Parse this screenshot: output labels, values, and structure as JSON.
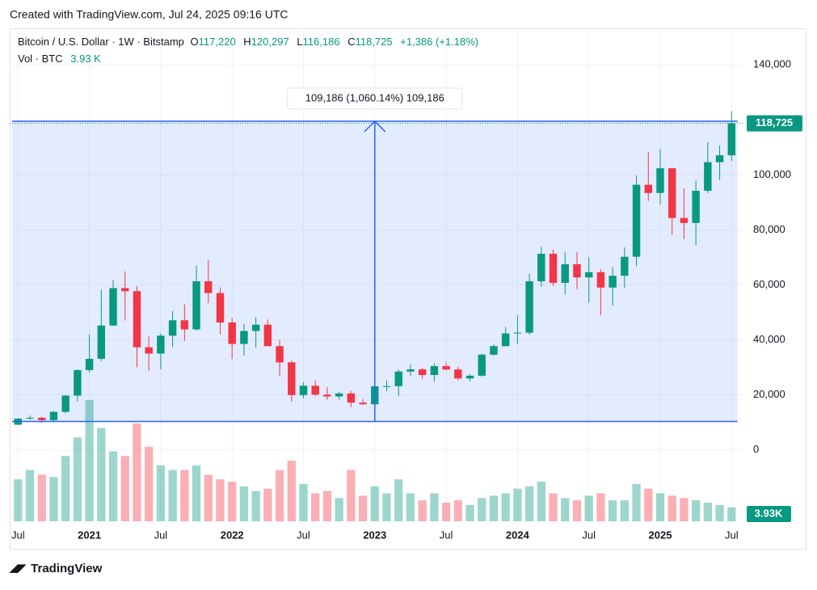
{
  "header": "Created with TradingView.com, Jul 24, 2025 09:16 UTC",
  "footer": "TradingView",
  "chart_data": {
    "type": "candlestick",
    "legend": {
      "symbol": "Bitcoin / U.S. Dollar · 1W · Bitstamp",
      "open_label": "O",
      "open": "117,220",
      "high_label": "H",
      "high": "120,297",
      "low_label": "L",
      "low": "116,186",
      "close_label": "C",
      "close": "118,725",
      "change": "+1,386 (+1.18%)",
      "volume_name": "Vol · BTC",
      "volume": "3.93 K"
    },
    "up_color": "#089981",
    "down_color": "#f23645",
    "ohlc": [
      [
        9140,
        11400,
        8950,
        11350
      ],
      [
        11350,
        12470,
        10950,
        11650
      ],
      [
        11650,
        12050,
        9850,
        10780
      ],
      [
        10780,
        14100,
        10400,
        13800
      ],
      [
        13800,
        19900,
        13200,
        19700
      ],
      [
        19700,
        29300,
        17600,
        29000
      ],
      [
        29000,
        41900,
        28100,
        33100
      ],
      [
        33100,
        58300,
        32300,
        45200
      ],
      [
        45200,
        61800,
        45000,
        58800
      ],
      [
        58800,
        64900,
        47000,
        57700
      ],
      [
        57700,
        59500,
        30000,
        37300
      ],
      [
        37300,
        41300,
        28800,
        35000
      ],
      [
        35000,
        42300,
        29300,
        41500
      ],
      [
        41500,
        50500,
        37400,
        47100
      ],
      [
        47100,
        52900,
        39600,
        43800
      ],
      [
        43800,
        67000,
        43300,
        61300
      ],
      [
        61300,
        69000,
        53300,
        57000
      ],
      [
        57000,
        59100,
        42000,
        46300
      ],
      [
        46300,
        47900,
        33000,
        38500
      ],
      [
        38500,
        45800,
        34300,
        43200
      ],
      [
        43200,
        48200,
        37200,
        45500
      ],
      [
        45500,
        47400,
        37700,
        37700
      ],
      [
        37700,
        40000,
        26700,
        31800
      ],
      [
        31800,
        32400,
        17600,
        19900
      ],
      [
        19900,
        24600,
        18800,
        23300
      ],
      [
        23300,
        25200,
        19600,
        20050
      ],
      [
        20050,
        22800,
        18200,
        19400
      ],
      [
        19400,
        21000,
        18200,
        20500
      ],
      [
        20500,
        21450,
        15500,
        17150
      ],
      [
        17150,
        18400,
        16300,
        16550
      ],
      [
        16550,
        23900,
        16500,
        23100
      ],
      [
        23100,
        25200,
        21400,
        23150
      ],
      [
        23150,
        29200,
        19600,
        28450
      ],
      [
        28450,
        31000,
        26900,
        29250
      ],
      [
        29250,
        29800,
        25800,
        27200
      ],
      [
        27200,
        31400,
        24800,
        30450
      ],
      [
        30450,
        31800,
        28900,
        29200
      ],
      [
        29200,
        30100,
        25300,
        25950
      ],
      [
        25950,
        27500,
        24900,
        26950
      ],
      [
        26950,
        35000,
        26600,
        34600
      ],
      [
        34600,
        38400,
        34100,
        37700
      ],
      [
        37700,
        44700,
        37600,
        42300
      ],
      [
        42300,
        48900,
        38500,
        42600
      ],
      [
        42600,
        64000,
        41900,
        61300
      ],
      [
        61300,
        73800,
        59300,
        71300
      ],
      [
        71300,
        72800,
        59600,
        60700
      ],
      [
        60700,
        71900,
        56500,
        67500
      ],
      [
        67500,
        72000,
        58400,
        62700
      ],
      [
        62700,
        70000,
        53500,
        64600
      ],
      [
        64600,
        65600,
        49000,
        59000
      ],
      [
        59000,
        66500,
        52500,
        63300
      ],
      [
        63300,
        73600,
        58900,
        70200
      ],
      [
        70200,
        99800,
        66800,
        96400
      ],
      [
        96400,
        108300,
        90500,
        93400
      ],
      [
        93400,
        109400,
        89200,
        102400
      ],
      [
        102400,
        102700,
        78200,
        84300
      ],
      [
        84300,
        95000,
        76600,
        82500
      ],
      [
        82500,
        97900,
        74400,
        94200
      ],
      [
        94200,
        111900,
        93400,
        104600
      ],
      [
        104600,
        110600,
        98200,
        107100
      ],
      [
        107100,
        123200,
        105100,
        118725
      ]
    ],
    "volume": [
      90000,
      110000,
      100000,
      95000,
      140000,
      180000,
      260000,
      200000,
      150000,
      140000,
      210000,
      160000,
      120000,
      110000,
      110000,
      120000,
      100000,
      90000,
      85000,
      75000,
      65000,
      70000,
      110000,
      130000,
      80000,
      60000,
      65000,
      50000,
      110000,
      55000,
      75000,
      60000,
      90000,
      60000,
      45000,
      60000,
      40000,
      45000,
      35000,
      50000,
      55000,
      60000,
      70000,
      75000,
      85000,
      60000,
      50000,
      45000,
      55000,
      60000,
      45000,
      45000,
      80000,
      70000,
      60000,
      55000,
      50000,
      45000,
      40000,
      35000,
      30000
    ],
    "volume_tag": "3.93K",
    "last": 118725,
    "ylim": [
      -26000,
      153000
    ],
    "yticks": [
      {
        "value": 0,
        "label": "0"
      },
      {
        "value": 20000,
        "label": "20,000"
      },
      {
        "value": 40000,
        "label": "40,000"
      },
      {
        "value": 60000,
        "label": "60,000"
      },
      {
        "value": 80000,
        "label": "80,000"
      },
      {
        "value": 100000,
        "label": "100,000"
      },
      {
        "value": 140000,
        "label": "140,000"
      }
    ],
    "xlim": [
      -0.7,
      61
    ],
    "xticks": [
      {
        "value": 0,
        "label": "Jul"
      },
      {
        "value": 6,
        "label": "2021"
      },
      {
        "value": 12,
        "label": "Jul"
      },
      {
        "value": 18,
        "label": "2022"
      },
      {
        "value": 24,
        "label": "Jul"
      },
      {
        "value": 30,
        "label": "2023"
      },
      {
        "value": 36,
        "label": "Jul"
      },
      {
        "value": 42,
        "label": "2024"
      },
      {
        "value": 48,
        "label": "Jul"
      },
      {
        "value": 54,
        "label": "2025"
      },
      {
        "value": 60,
        "label": "Jul"
      }
    ],
    "grid": true,
    "measure": {
      "label": "109,186 (1,060.14%) 109,186",
      "low": 10299,
      "high": 119485,
      "color": "#2962ff"
    }
  }
}
